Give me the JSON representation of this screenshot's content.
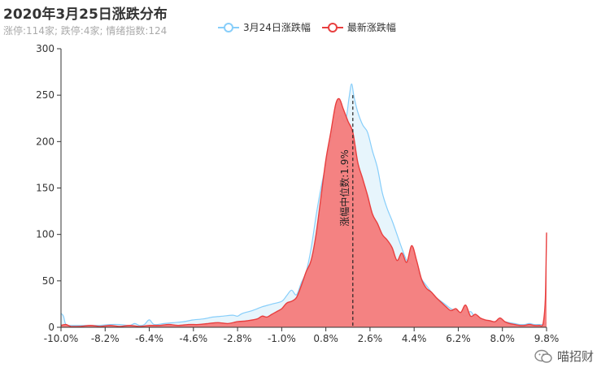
{
  "title": "2020年3月25日涨跌分布",
  "subtitle": "涨停:114家; 跌停:4家; 情绪指数:124",
  "legend": [
    {
      "label": "3月24日涨跌幅",
      "color": "#87cefa"
    },
    {
      "label": "最新涨跌幅",
      "color": "#e83f3f"
    }
  ],
  "watermark": "喵招财",
  "chart_data": {
    "type": "area",
    "title": "2020年3月25日涨跌分布",
    "subtitle": "涨停:114家; 跌停:4家; 情绪指数:124",
    "x_ticks": [
      "-10.0%",
      "-8.2%",
      "-6.4%",
      "-4.6%",
      "-2.8%",
      "-1.0%",
      "0.8%",
      "2.6%",
      "4.4%",
      "6.2%",
      "8.0%",
      "9.8%"
    ],
    "xlim": [
      -10.0,
      9.8
    ],
    "ylim": [
      0,
      300
    ],
    "y_ticks": [
      0,
      50,
      100,
      150,
      200,
      250,
      300
    ],
    "grid": false,
    "legend_position": "top-center",
    "median_line": {
      "x": 1.9,
      "label": "涨幅中位数:1.9%"
    },
    "series": [
      {
        "name": "3月24日涨跌幅",
        "color": "#87cefa",
        "fill": "#dff1fb",
        "points": [
          [
            -10.0,
            15
          ],
          [
            -9.9,
            12
          ],
          [
            -9.8,
            3
          ],
          [
            -9.6,
            2
          ],
          [
            -9.2,
            2
          ],
          [
            -8.8,
            2
          ],
          [
            -8.4,
            2
          ],
          [
            -8.0,
            3
          ],
          [
            -7.6,
            3
          ],
          [
            -7.2,
            2
          ],
          [
            -7.0,
            4
          ],
          [
            -6.8,
            2
          ],
          [
            -6.6,
            3
          ],
          [
            -6.4,
            8
          ],
          [
            -6.2,
            3
          ],
          [
            -5.8,
            4
          ],
          [
            -5.4,
            5
          ],
          [
            -5.0,
            6
          ],
          [
            -4.6,
            8
          ],
          [
            -4.2,
            9
          ],
          [
            -3.8,
            11
          ],
          [
            -3.4,
            12
          ],
          [
            -3.0,
            13
          ],
          [
            -2.8,
            12
          ],
          [
            -2.6,
            15
          ],
          [
            -2.2,
            18
          ],
          [
            -1.8,
            22
          ],
          [
            -1.4,
            25
          ],
          [
            -1.0,
            28
          ],
          [
            -0.8,
            34
          ],
          [
            -0.6,
            40
          ],
          [
            -0.4,
            35
          ],
          [
            -0.2,
            48
          ],
          [
            0.0,
            60
          ],
          [
            0.2,
            85
          ],
          [
            0.4,
            120
          ],
          [
            0.6,
            150
          ],
          [
            0.8,
            175
          ],
          [
            1.0,
            200
          ],
          [
            1.2,
            220
          ],
          [
            1.4,
            228
          ],
          [
            1.6,
            222
          ],
          [
            1.75,
            248
          ],
          [
            1.85,
            262
          ],
          [
            1.95,
            248
          ],
          [
            2.1,
            232
          ],
          [
            2.3,
            218
          ],
          [
            2.5,
            210
          ],
          [
            2.7,
            190
          ],
          [
            2.9,
            172
          ],
          [
            3.1,
            145
          ],
          [
            3.3,
            128
          ],
          [
            3.5,
            115
          ],
          [
            3.7,
            100
          ],
          [
            3.9,
            85
          ],
          [
            4.1,
            72
          ],
          [
            4.3,
            68
          ],
          [
            4.5,
            62
          ],
          [
            4.7,
            52
          ],
          [
            4.9,
            45
          ],
          [
            5.1,
            38
          ],
          [
            5.3,
            32
          ],
          [
            5.5,
            28
          ],
          [
            5.7,
            24
          ],
          [
            5.9,
            20
          ],
          [
            6.1,
            18
          ],
          [
            6.3,
            15
          ],
          [
            6.5,
            12
          ],
          [
            6.7,
            17
          ],
          [
            6.9,
            10
          ],
          [
            7.1,
            8
          ],
          [
            7.3,
            6
          ],
          [
            7.5,
            6
          ],
          [
            7.7,
            5
          ],
          [
            7.9,
            8
          ],
          [
            8.1,
            6
          ],
          [
            8.3,
            5
          ],
          [
            8.5,
            4
          ],
          [
            8.7,
            3
          ],
          [
            8.9,
            3
          ],
          [
            9.1,
            4
          ],
          [
            9.3,
            3
          ],
          [
            9.5,
            3
          ],
          [
            9.7,
            3
          ],
          [
            9.8,
            5
          ]
        ]
      },
      {
        "name": "最新涨跌幅",
        "color": "#e83f3f",
        "fill": "#f47b7b",
        "points": [
          [
            -10.0,
            2
          ],
          [
            -9.8,
            3
          ],
          [
            -9.6,
            1
          ],
          [
            -9.2,
            1
          ],
          [
            -8.8,
            2
          ],
          [
            -8.4,
            1
          ],
          [
            -8.0,
            2
          ],
          [
            -7.6,
            1
          ],
          [
            -7.2,
            2
          ],
          [
            -6.8,
            1
          ],
          [
            -6.4,
            2
          ],
          [
            -6.0,
            2
          ],
          [
            -5.6,
            3
          ],
          [
            -5.2,
            2
          ],
          [
            -4.8,
            3
          ],
          [
            -4.4,
            3
          ],
          [
            -4.0,
            4
          ],
          [
            -3.6,
            5
          ],
          [
            -3.2,
            4
          ],
          [
            -2.8,
            6
          ],
          [
            -2.4,
            7
          ],
          [
            -2.0,
            9
          ],
          [
            -1.8,
            12
          ],
          [
            -1.6,
            11
          ],
          [
            -1.4,
            14
          ],
          [
            -1.2,
            17
          ],
          [
            -1.0,
            20
          ],
          [
            -0.8,
            26
          ],
          [
            -0.6,
            28
          ],
          [
            -0.4,
            32
          ],
          [
            -0.2,
            45
          ],
          [
            0.0,
            60
          ],
          [
            0.2,
            72
          ],
          [
            0.4,
            100
          ],
          [
            0.6,
            140
          ],
          [
            0.8,
            180
          ],
          [
            1.0,
            210
          ],
          [
            1.2,
            240
          ],
          [
            1.35,
            246
          ],
          [
            1.5,
            236
          ],
          [
            1.7,
            222
          ],
          [
            1.9,
            210
          ],
          [
            2.1,
            178
          ],
          [
            2.3,
            160
          ],
          [
            2.5,
            142
          ],
          [
            2.7,
            122
          ],
          [
            2.9,
            112
          ],
          [
            3.1,
            100
          ],
          [
            3.3,
            94
          ],
          [
            3.5,
            86
          ],
          [
            3.7,
            72
          ],
          [
            3.9,
            80
          ],
          [
            4.1,
            70
          ],
          [
            4.3,
            88
          ],
          [
            4.5,
            72
          ],
          [
            4.7,
            52
          ],
          [
            4.9,
            42
          ],
          [
            5.1,
            38
          ],
          [
            5.3,
            32
          ],
          [
            5.5,
            27
          ],
          [
            5.7,
            22
          ],
          [
            5.9,
            18
          ],
          [
            6.1,
            20
          ],
          [
            6.3,
            16
          ],
          [
            6.5,
            24
          ],
          [
            6.7,
            12
          ],
          [
            6.9,
            14
          ],
          [
            7.1,
            10
          ],
          [
            7.3,
            8
          ],
          [
            7.5,
            7
          ],
          [
            7.7,
            6
          ],
          [
            7.9,
            10
          ],
          [
            8.1,
            6
          ],
          [
            8.3,
            4
          ],
          [
            8.5,
            3
          ],
          [
            8.7,
            2
          ],
          [
            8.9,
            2
          ],
          [
            9.1,
            3
          ],
          [
            9.3,
            2
          ],
          [
            9.5,
            2
          ],
          [
            9.65,
            3
          ],
          [
            9.75,
            30
          ],
          [
            9.8,
            102
          ]
        ]
      }
    ]
  }
}
